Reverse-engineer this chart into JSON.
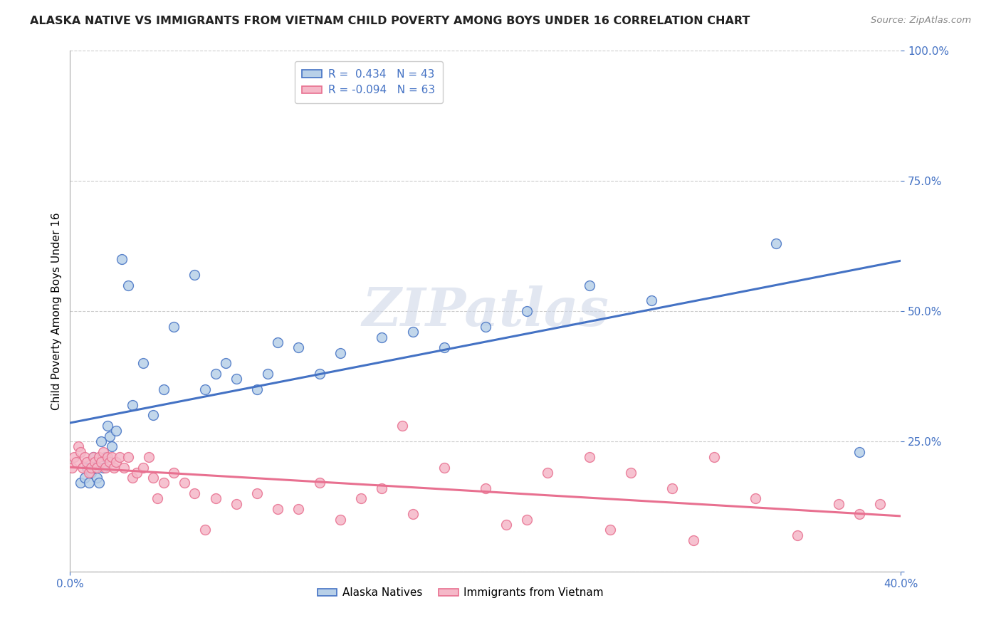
{
  "title": "ALASKA NATIVE VS IMMIGRANTS FROM VIETNAM CHILD POVERTY AMONG BOYS UNDER 16 CORRELATION CHART",
  "source": "Source: ZipAtlas.com",
  "ylabel": "Child Poverty Among Boys Under 16",
  "blue_R": 0.434,
  "blue_N": 43,
  "pink_R": -0.094,
  "pink_N": 63,
  "blue_color": "#b8d0e8",
  "pink_color": "#f5b8c8",
  "blue_line_color": "#4472c4",
  "pink_line_color": "#e87090",
  "watermark": "ZIPatlas",
  "legend_label_blue": "Alaska Natives",
  "legend_label_pink": "Immigrants from Vietnam",
  "xlim": [
    0.0,
    0.4
  ],
  "ylim": [
    0.0,
    1.0
  ],
  "yticks": [
    0.0,
    0.25,
    0.5,
    0.75,
    1.0
  ],
  "xticks": [
    0.0,
    0.4
  ],
  "blue_scatter_x": [
    0.005,
    0.007,
    0.008,
    0.009,
    0.01,
    0.011,
    0.012,
    0.013,
    0.014,
    0.015,
    0.016,
    0.017,
    0.018,
    0.019,
    0.02,
    0.022,
    0.025,
    0.028,
    0.03,
    0.035,
    0.04,
    0.045,
    0.05,
    0.06,
    0.065,
    0.07,
    0.075,
    0.08,
    0.09,
    0.095,
    0.1,
    0.11,
    0.12,
    0.13,
    0.15,
    0.165,
    0.18,
    0.2,
    0.22,
    0.25,
    0.28,
    0.34,
    0.38
  ],
  "blue_scatter_y": [
    0.17,
    0.18,
    0.2,
    0.17,
    0.19,
    0.22,
    0.2,
    0.18,
    0.17,
    0.25,
    0.2,
    0.22,
    0.28,
    0.26,
    0.24,
    0.27,
    0.6,
    0.55,
    0.32,
    0.4,
    0.3,
    0.35,
    0.47,
    0.57,
    0.35,
    0.38,
    0.4,
    0.37,
    0.35,
    0.38,
    0.44,
    0.43,
    0.38,
    0.42,
    0.45,
    0.46,
    0.43,
    0.47,
    0.5,
    0.55,
    0.52,
    0.63,
    0.23
  ],
  "pink_scatter_x": [
    0.001,
    0.002,
    0.003,
    0.004,
    0.005,
    0.006,
    0.007,
    0.008,
    0.009,
    0.01,
    0.011,
    0.012,
    0.013,
    0.014,
    0.015,
    0.016,
    0.017,
    0.018,
    0.019,
    0.02,
    0.021,
    0.022,
    0.024,
    0.026,
    0.028,
    0.03,
    0.032,
    0.035,
    0.038,
    0.04,
    0.042,
    0.045,
    0.05,
    0.055,
    0.06,
    0.065,
    0.07,
    0.08,
    0.09,
    0.1,
    0.11,
    0.13,
    0.15,
    0.165,
    0.18,
    0.2,
    0.21,
    0.23,
    0.25,
    0.27,
    0.29,
    0.31,
    0.33,
    0.35,
    0.37,
    0.38,
    0.39,
    0.12,
    0.14,
    0.16,
    0.22,
    0.26,
    0.3
  ],
  "pink_scatter_y": [
    0.2,
    0.22,
    0.21,
    0.24,
    0.23,
    0.2,
    0.22,
    0.21,
    0.19,
    0.2,
    0.22,
    0.21,
    0.2,
    0.22,
    0.21,
    0.23,
    0.2,
    0.22,
    0.21,
    0.22,
    0.2,
    0.21,
    0.22,
    0.2,
    0.22,
    0.18,
    0.19,
    0.2,
    0.22,
    0.18,
    0.14,
    0.17,
    0.19,
    0.17,
    0.15,
    0.08,
    0.14,
    0.13,
    0.15,
    0.12,
    0.12,
    0.1,
    0.16,
    0.11,
    0.2,
    0.16,
    0.09,
    0.19,
    0.22,
    0.19,
    0.16,
    0.22,
    0.14,
    0.07,
    0.13,
    0.11,
    0.13,
    0.17,
    0.14,
    0.28,
    0.1,
    0.08,
    0.06
  ],
  "background_color": "#ffffff",
  "grid_color": "#cccccc",
  "title_fontsize": 11.5,
  "axis_label_fontsize": 11,
  "tick_fontsize": 11,
  "legend_fontsize": 11
}
